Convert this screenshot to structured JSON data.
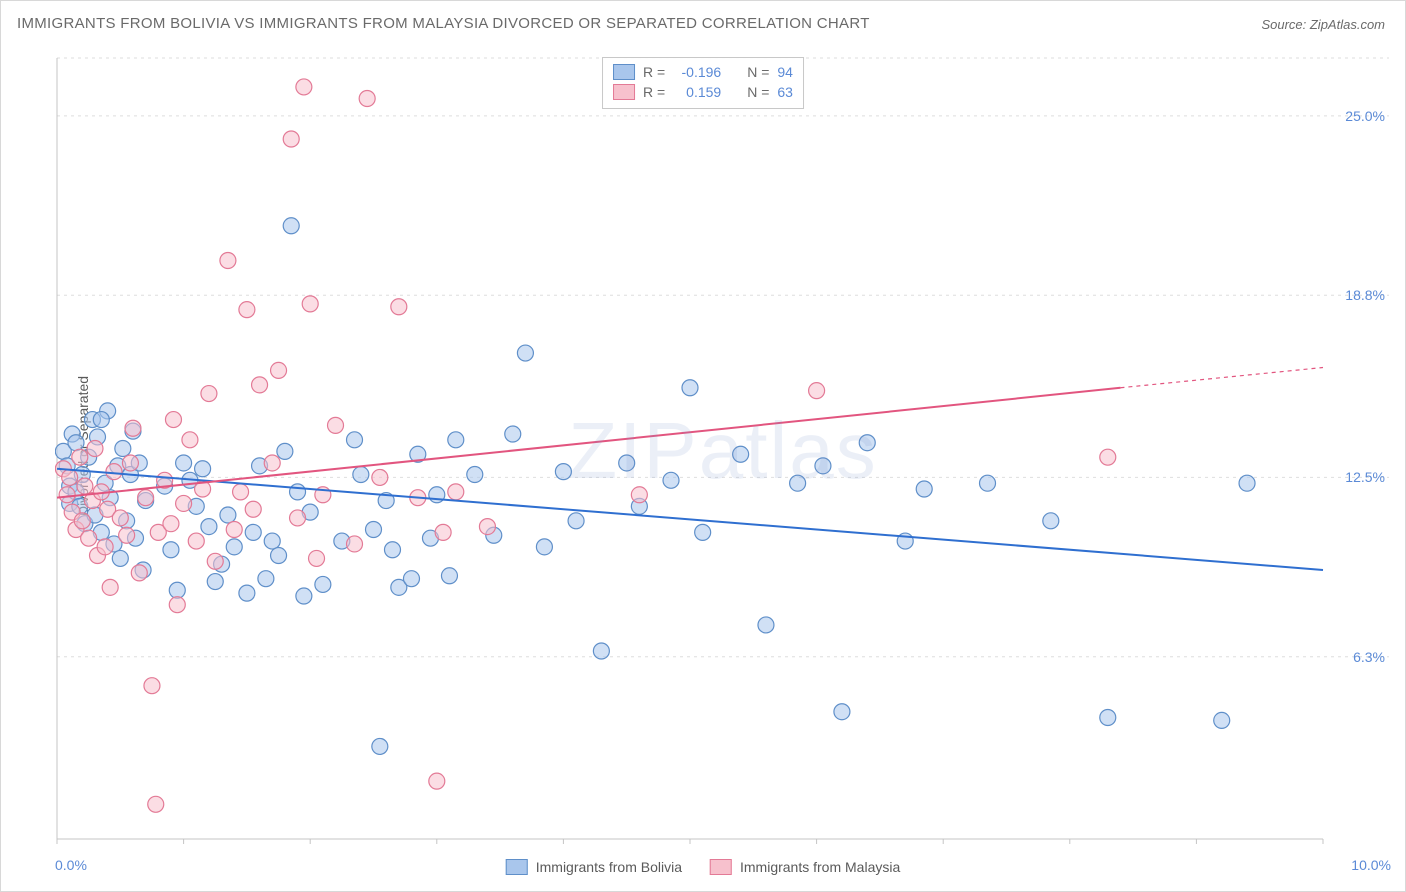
{
  "title": "IMMIGRANTS FROM BOLIVIA VS IMMIGRANTS FROM MALAYSIA DIVORCED OR SEPARATED CORRELATION CHART",
  "source": "Source: ZipAtlas.com",
  "watermark": "ZIPatlas",
  "y_axis_title": "Divorced or Separated",
  "chart": {
    "type": "scatter",
    "xlim": [
      0,
      10
    ],
    "ylim": [
      0,
      27
    ],
    "x_tick_labels": [
      "0.0%",
      "10.0%"
    ],
    "y_tick_labels": [
      "6.3%",
      "12.5%",
      "18.8%",
      "25.0%"
    ],
    "y_tick_values": [
      6.3,
      12.5,
      18.8,
      25.0
    ],
    "grid_color": "#dedede",
    "axis_color": "#c4c4c4",
    "background_color": "#ffffff",
    "tick_label_color": "#5b8ad6",
    "tick_label_fontsize": 14,
    "title_fontsize": 15,
    "title_color": "#6a6a6a",
    "marker_radius": 8,
    "marker_stroke_width": 1.2,
    "line_width": 2
  },
  "series": [
    {
      "name": "Immigrants from Bolivia",
      "fill_color": "#a9c6ec",
      "stroke_color": "#5f8fc9",
      "line_color": "#2f6fd0",
      "R": "-0.196",
      "N": "94",
      "trend": {
        "x1": 0,
        "y1": 12.8,
        "x2": 10,
        "y2": 9.3
      },
      "points": [
        [
          0.05,
          13.4
        ],
        [
          0.08,
          12.9
        ],
        [
          0.1,
          12.2
        ],
        [
          0.1,
          11.6
        ],
        [
          0.12,
          14.0
        ],
        [
          0.15,
          12.0
        ],
        [
          0.15,
          13.7
        ],
        [
          0.18,
          11.5
        ],
        [
          0.2,
          12.6
        ],
        [
          0.22,
          10.9
        ],
        [
          0.25,
          13.2
        ],
        [
          0.28,
          14.5
        ],
        [
          0.3,
          11.2
        ],
        [
          0.32,
          13.9
        ],
        [
          0.35,
          10.6
        ],
        [
          0.38,
          12.3
        ],
        [
          0.4,
          14.8
        ],
        [
          0.42,
          11.8
        ],
        [
          0.45,
          10.2
        ],
        [
          0.48,
          12.9
        ],
        [
          0.5,
          9.7
        ],
        [
          0.52,
          13.5
        ],
        [
          0.55,
          11.0
        ],
        [
          0.58,
          12.6
        ],
        [
          0.6,
          14.1
        ],
        [
          0.62,
          10.4
        ],
        [
          0.65,
          13.0
        ],
        [
          0.68,
          9.3
        ],
        [
          0.7,
          11.7
        ],
        [
          0.85,
          12.2
        ],
        [
          0.9,
          10.0
        ],
        [
          0.95,
          8.6
        ],
        [
          1.0,
          13.0
        ],
        [
          1.05,
          12.4
        ],
        [
          1.1,
          11.5
        ],
        [
          1.15,
          12.8
        ],
        [
          1.2,
          10.8
        ],
        [
          1.25,
          8.9
        ],
        [
          1.3,
          9.5
        ],
        [
          1.35,
          11.2
        ],
        [
          1.4,
          10.1
        ],
        [
          1.5,
          8.5
        ],
        [
          1.55,
          10.6
        ],
        [
          1.6,
          12.9
        ],
        [
          1.65,
          9.0
        ],
        [
          1.7,
          10.3
        ],
        [
          1.75,
          9.8
        ],
        [
          1.8,
          13.4
        ],
        [
          1.85,
          21.2
        ],
        [
          1.9,
          12.0
        ],
        [
          1.95,
          8.4
        ],
        [
          2.0,
          11.3
        ],
        [
          2.1,
          8.8
        ],
        [
          2.25,
          10.3
        ],
        [
          2.35,
          13.8
        ],
        [
          2.4,
          12.6
        ],
        [
          2.5,
          10.7
        ],
        [
          2.55,
          3.2
        ],
        [
          2.6,
          11.7
        ],
        [
          2.65,
          10.0
        ],
        [
          2.7,
          8.7
        ],
        [
          2.8,
          9.0
        ],
        [
          2.85,
          13.3
        ],
        [
          2.95,
          10.4
        ],
        [
          3.0,
          11.9
        ],
        [
          3.1,
          9.1
        ],
        [
          3.15,
          13.8
        ],
        [
          3.3,
          12.6
        ],
        [
          3.45,
          10.5
        ],
        [
          3.6,
          14.0
        ],
        [
          3.7,
          16.8
        ],
        [
          3.85,
          10.1
        ],
        [
          4.0,
          12.7
        ],
        [
          4.1,
          11.0
        ],
        [
          4.3,
          6.5
        ],
        [
          4.5,
          13.0
        ],
        [
          4.6,
          11.5
        ],
        [
          4.85,
          12.4
        ],
        [
          5.0,
          15.6
        ],
        [
          5.1,
          10.6
        ],
        [
          5.4,
          13.3
        ],
        [
          5.6,
          7.4
        ],
        [
          5.85,
          12.3
        ],
        [
          6.05,
          12.9
        ],
        [
          6.2,
          4.4
        ],
        [
          6.4,
          13.7
        ],
        [
          6.7,
          10.3
        ],
        [
          6.85,
          12.1
        ],
        [
          7.35,
          12.3
        ],
        [
          7.85,
          11.0
        ],
        [
          8.3,
          4.2
        ],
        [
          9.2,
          4.1
        ],
        [
          9.4,
          12.3
        ],
        [
          0.35,
          14.5
        ]
      ]
    },
    {
      "name": "Immigrants from Malaysia",
      "fill_color": "#f7c1cd",
      "stroke_color": "#e37a96",
      "line_color": "#e2557f",
      "R": "0.159",
      "N": "63",
      "trend": {
        "x1": 0,
        "y1": 11.8,
        "x2": 8.4,
        "y2": 15.6
      },
      "trend_dashed": {
        "x1": 8.4,
        "y1": 15.6,
        "x2": 10,
        "y2": 16.3
      },
      "points": [
        [
          0.05,
          12.8
        ],
        [
          0.08,
          11.9
        ],
        [
          0.1,
          12.5
        ],
        [
          0.12,
          11.3
        ],
        [
          0.15,
          10.7
        ],
        [
          0.18,
          13.2
        ],
        [
          0.2,
          11.0
        ],
        [
          0.22,
          12.2
        ],
        [
          0.25,
          10.4
        ],
        [
          0.28,
          11.7
        ],
        [
          0.3,
          13.5
        ],
        [
          0.32,
          9.8
        ],
        [
          0.35,
          12.0
        ],
        [
          0.38,
          10.1
        ],
        [
          0.4,
          11.4
        ],
        [
          0.42,
          8.7
        ],
        [
          0.45,
          12.7
        ],
        [
          0.5,
          11.1
        ],
        [
          0.55,
          10.5
        ],
        [
          0.58,
          13.0
        ],
        [
          0.6,
          14.2
        ],
        [
          0.65,
          9.2
        ],
        [
          0.7,
          11.8
        ],
        [
          0.75,
          5.3
        ],
        [
          0.78,
          1.2
        ],
        [
          0.8,
          10.6
        ],
        [
          0.85,
          12.4
        ],
        [
          0.9,
          10.9
        ],
        [
          0.92,
          14.5
        ],
        [
          0.95,
          8.1
        ],
        [
          1.0,
          11.6
        ],
        [
          1.05,
          13.8
        ],
        [
          1.1,
          10.3
        ],
        [
          1.15,
          12.1
        ],
        [
          1.2,
          15.4
        ],
        [
          1.25,
          9.6
        ],
        [
          1.35,
          20.0
        ],
        [
          1.4,
          10.7
        ],
        [
          1.45,
          12.0
        ],
        [
          1.5,
          18.3
        ],
        [
          1.55,
          11.4
        ],
        [
          1.6,
          15.7
        ],
        [
          1.7,
          13.0
        ],
        [
          1.75,
          16.2
        ],
        [
          1.85,
          24.2
        ],
        [
          1.9,
          11.1
        ],
        [
          1.95,
          26.0
        ],
        [
          2.0,
          18.5
        ],
        [
          2.05,
          9.7
        ],
        [
          2.1,
          11.9
        ],
        [
          2.2,
          14.3
        ],
        [
          2.35,
          10.2
        ],
        [
          2.45,
          25.6
        ],
        [
          2.55,
          12.5
        ],
        [
          2.7,
          18.4
        ],
        [
          2.85,
          11.8
        ],
        [
          3.0,
          2.0
        ],
        [
          3.05,
          10.6
        ],
        [
          3.15,
          12.0
        ],
        [
          3.4,
          10.8
        ],
        [
          4.6,
          11.9
        ],
        [
          6.0,
          15.5
        ],
        [
          8.3,
          13.2
        ]
      ]
    }
  ],
  "legend_top": {
    "rows": [
      {
        "swatch_fill": "#a9c6ec",
        "swatch_stroke": "#5f8fc9",
        "R_label": "R =",
        "R_val": "-0.196",
        "N_label": "N =",
        "N_val": "94"
      },
      {
        "swatch_fill": "#f7c1cd",
        "swatch_stroke": "#e37a96",
        "R_label": "R =",
        "R_val": " 0.159",
        "N_label": "N =",
        "N_val": "63"
      }
    ]
  },
  "legend_bottom": {
    "items": [
      {
        "swatch_fill": "#a9c6ec",
        "swatch_stroke": "#5f8fc9",
        "label": "Immigrants from Bolivia"
      },
      {
        "swatch_fill": "#f7c1cd",
        "swatch_stroke": "#e37a96",
        "label": "Immigrants from Malaysia"
      }
    ]
  }
}
